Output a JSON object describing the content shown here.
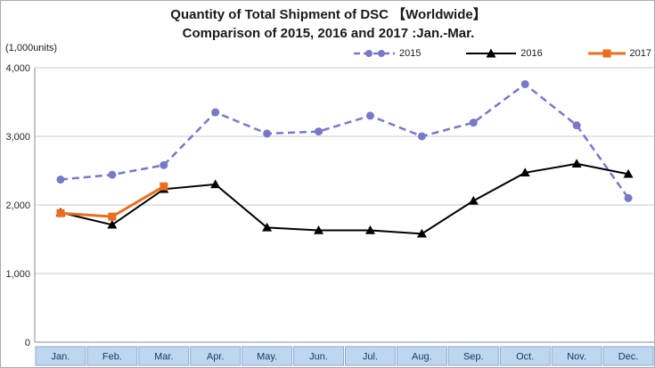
{
  "page": {
    "title_line1": "Quantity of Total Shipment of DSC 【Worldwide】",
    "title_line2": "Comparison of 2015, 2016 and 2017 :Jan.-Mar.",
    "units_label": "(1,000units)"
  },
  "chart_data": {
    "type": "line",
    "title": "Quantity of Total Shipment of DSC 【Worldwide】 Comparison of 2015, 2016 and 2017 :Jan.-Mar.",
    "xlabel": "",
    "ylabel": "(1,000units)",
    "ylim": [
      0,
      4000
    ],
    "y_ticks": [
      "0",
      "1,000",
      "2,000",
      "3,000",
      "4,000"
    ],
    "grid": true,
    "legend_position": "top-right",
    "categories": [
      "Jan.",
      "Feb.",
      "Mar.",
      "Apr.",
      "May.",
      "Jun.",
      "Jul.",
      "Aug.",
      "Sep.",
      "Oct.",
      "Nov.",
      "Dec."
    ],
    "series": [
      {
        "name": "2015",
        "color": "#7878C8",
        "style": "dashed",
        "marker": "circle",
        "values": [
          2370,
          2440,
          2580,
          3350,
          3040,
          3070,
          3300,
          3000,
          3200,
          3760,
          3160,
          2100
        ]
      },
      {
        "name": "2016",
        "color": "#000000",
        "style": "solid",
        "marker": "triangle",
        "values": [
          1890,
          1710,
          2230,
          2300,
          1670,
          1630,
          1630,
          1580,
          2060,
          2470,
          2600,
          2450
        ]
      },
      {
        "name": "2017",
        "color": "#ED6D1F",
        "style": "solid",
        "marker": "square",
        "values": [
          1880,
          1830,
          2270,
          null,
          null,
          null,
          null,
          null,
          null,
          null,
          null,
          null
        ]
      }
    ],
    "colors": {
      "month_fill": "#BDD7EE",
      "month_border": "#8EAADB",
      "month_text": "#17375E",
      "grid": "#C9C9C9",
      "axis": "#8C8C8C",
      "tick_text": "#262626"
    }
  }
}
